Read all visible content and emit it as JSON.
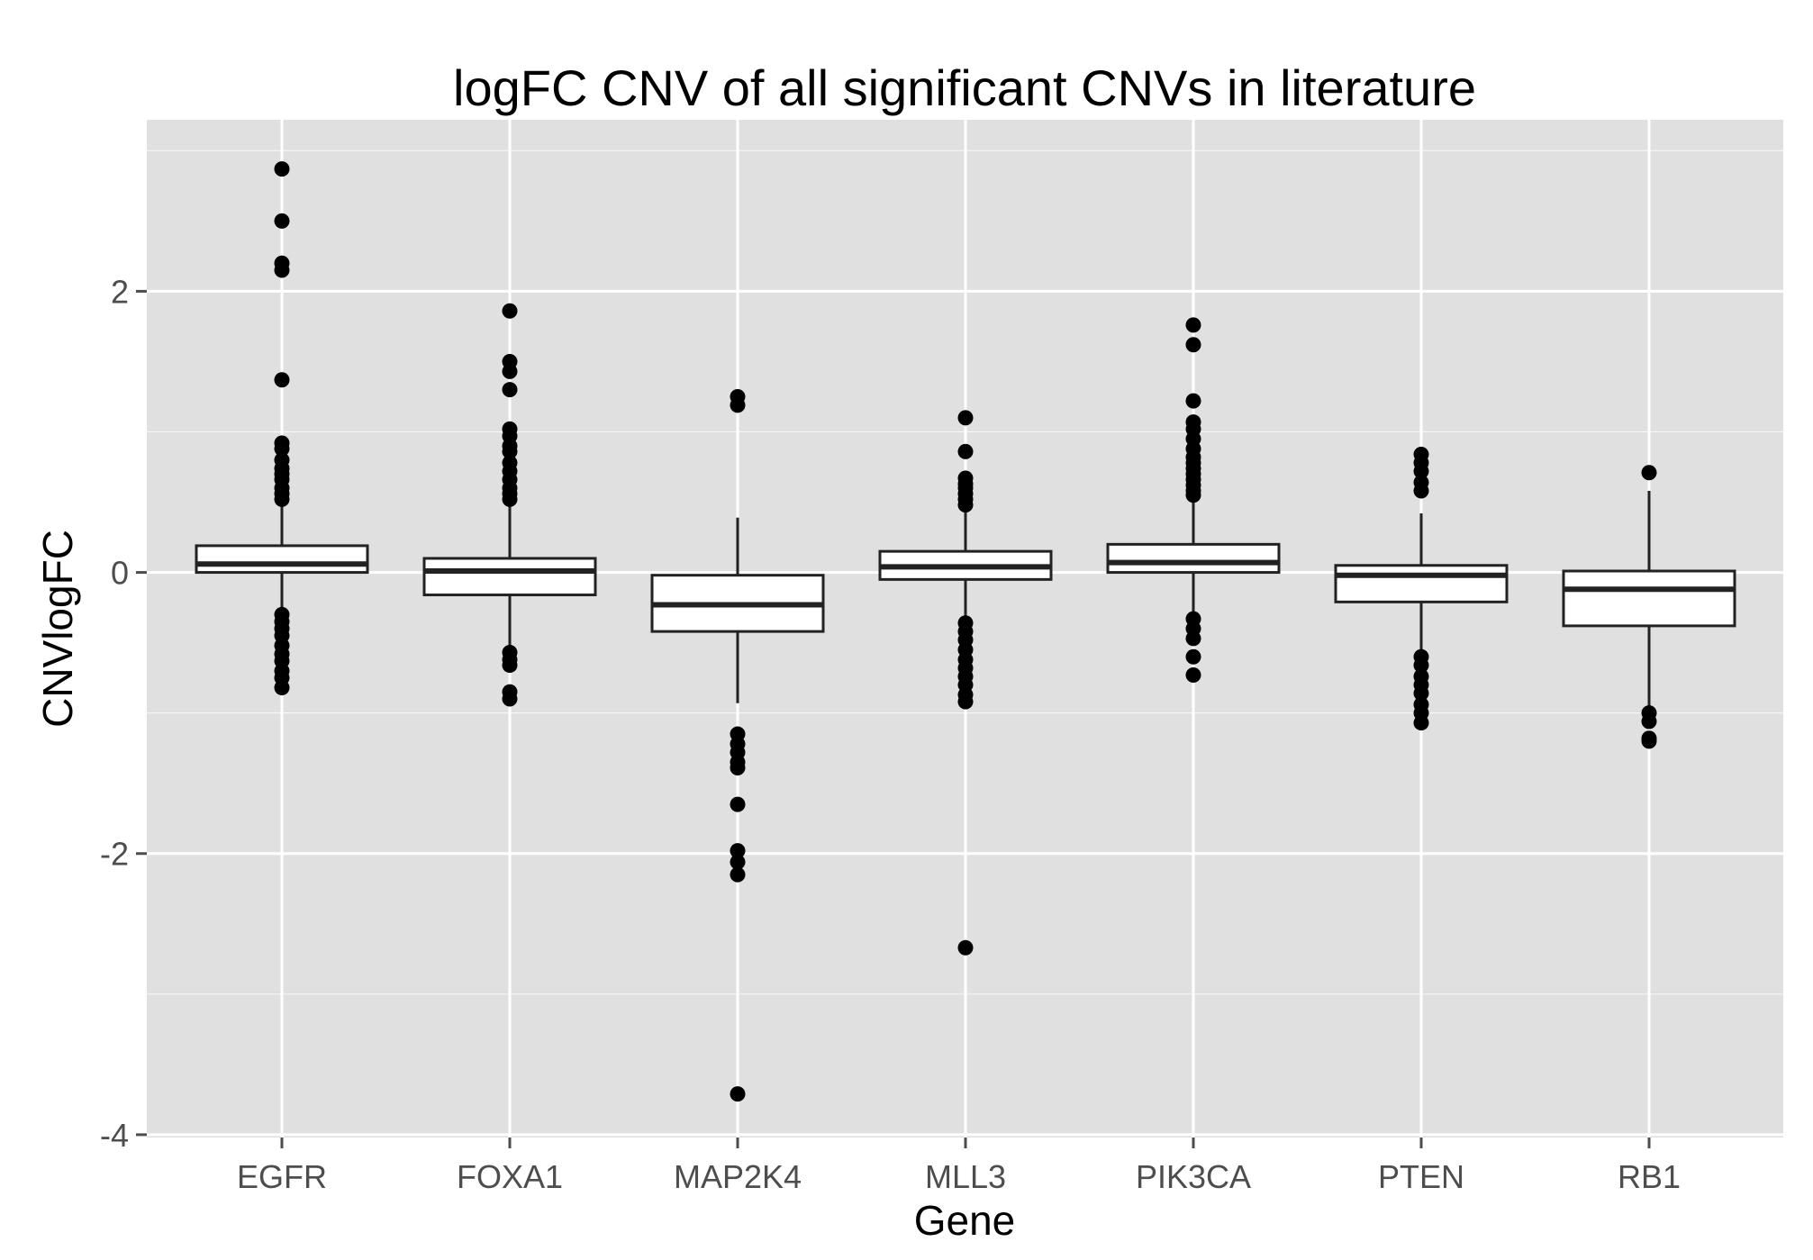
{
  "chart_data": {
    "type": "boxplot",
    "title": "logFC CNV of all significant CNVs in literature",
    "xlabel": "Gene",
    "ylabel": "CNVlogFC",
    "ylim": [
      -4.02,
      3.22
    ],
    "yticks": [
      -4,
      -2,
      0,
      2
    ],
    "grid": true,
    "colors": {
      "panel": "#e0e0e0",
      "grid": "#ffffff",
      "box_fill": "#ffffff",
      "box_line": "#222222",
      "point": "#000000"
    },
    "categories": [
      "EGFR",
      "FOXA1",
      "MAP2K4",
      "MLL3",
      "PIK3CA",
      "PTEN",
      "RB1"
    ],
    "boxes": [
      {
        "gene": "EGFR",
        "q1": 0.0,
        "median": 0.06,
        "q3": 0.19,
        "whisker_low": -0.28,
        "whisker_high": 0.47,
        "outliers": [
          2.87,
          2.5,
          2.2,
          2.15,
          1.37,
          0.92,
          0.88,
          0.8,
          0.74,
          0.7,
          0.66,
          0.6,
          0.56,
          0.52,
          -0.3,
          -0.35,
          -0.4,
          -0.45,
          -0.52,
          -0.58,
          -0.63,
          -0.7,
          -0.75,
          -0.82
        ]
      },
      {
        "gene": "FOXA1",
        "q1": -0.16,
        "median": 0.01,
        "q3": 0.1,
        "whisker_low": -0.55,
        "whisker_high": 0.5,
        "outliers": [
          1.86,
          1.5,
          1.43,
          1.3,
          1.02,
          0.97,
          0.9,
          0.86,
          0.78,
          0.72,
          0.66,
          0.6,
          0.56,
          0.52,
          -0.57,
          -0.62,
          -0.66,
          -0.85,
          -0.9
        ]
      },
      {
        "gene": "MAP2K4",
        "q1": -0.42,
        "median": -0.23,
        "q3": -0.02,
        "whisker_low": -0.93,
        "whisker_high": 0.39,
        "outliers": [
          1.25,
          1.19,
          -1.15,
          -1.22,
          -1.28,
          -1.35,
          -1.39,
          -1.65,
          -1.98,
          -2.06,
          -2.15,
          -3.71
        ]
      },
      {
        "gene": "MLL3",
        "q1": -0.05,
        "median": 0.04,
        "q3": 0.15,
        "whisker_low": -0.33,
        "whisker_high": 0.45,
        "outliers": [
          1.1,
          0.86,
          0.67,
          0.63,
          0.6,
          0.56,
          0.52,
          0.48,
          -0.36,
          -0.42,
          -0.48,
          -0.55,
          -0.62,
          -0.68,
          -0.74,
          -0.8,
          -0.87,
          -0.92,
          -2.67
        ]
      },
      {
        "gene": "PIK3CA",
        "q1": 0.0,
        "median": 0.07,
        "q3": 0.2,
        "whisker_low": -0.28,
        "whisker_high": 0.5,
        "outliers": [
          1.76,
          1.62,
          1.22,
          1.07,
          1.02,
          0.95,
          0.88,
          0.82,
          0.78,
          0.74,
          0.7,
          0.66,
          0.62,
          0.58,
          0.55,
          -0.33,
          -0.4,
          -0.47,
          -0.6,
          -0.73
        ]
      },
      {
        "gene": "PTEN",
        "q1": -0.21,
        "median": -0.02,
        "q3": 0.05,
        "whisker_low": -0.57,
        "whisker_high": 0.42,
        "outliers": [
          0.84,
          0.78,
          0.72,
          0.64,
          0.58,
          -0.6,
          -0.66,
          -0.74,
          -0.8,
          -0.86,
          -0.94,
          -1.0,
          -1.07
        ]
      },
      {
        "gene": "RB1",
        "q1": -0.38,
        "median": -0.12,
        "q3": 0.01,
        "whisker_low": -0.97,
        "whisker_high": 0.58,
        "outliers": [
          0.71,
          -1.0,
          -1.06,
          -1.18,
          -1.2
        ]
      }
    ]
  }
}
